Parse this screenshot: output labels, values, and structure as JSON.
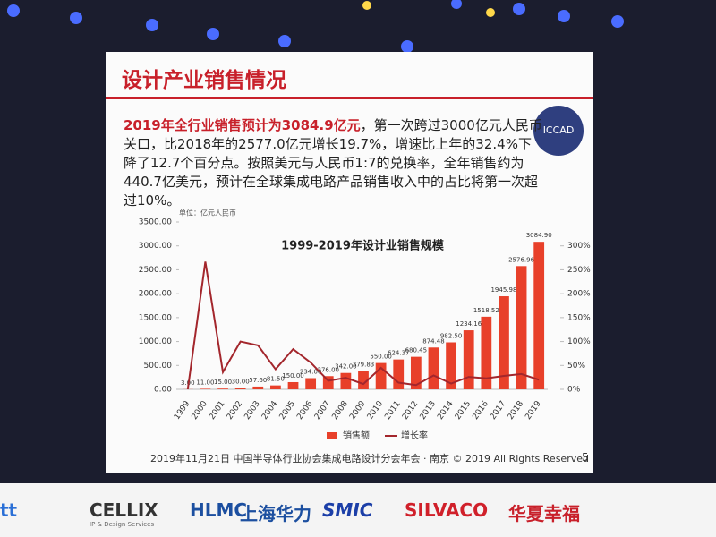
{
  "slide": {
    "title": "设计产业销售情况",
    "logo": "ICCAD",
    "highlight": "2019年全行业销售预计为3084.9亿元",
    "body": "，第一次跨过3000亿元人民币关口，比2018年的2577.0亿元增长19.7%，增速比上年的32.4%下降了12.7个百分点。按照美元与人民币1:7的兑换率，全年销售约为440.7亿美元，预计在全球集成电路产品销售收入中的占比将第一次超过10%。",
    "footer": "2019年11月21日  中国半导体行业协会集成电路设计分会年会 · 南京 © 2019 All Rights Reserved",
    "page": "5"
  },
  "sponsors": [
    "tt",
    "CELLIX",
    "IP & Design Services",
    "HLMC",
    "上海华力",
    "SMIC",
    "SILVACO",
    "华夏幸福"
  ],
  "chart_data": {
    "type": "bar-line",
    "title": "1999-2019年设计业销售规模",
    "unit": "单位：亿元人民币",
    "categories": [
      "1999",
      "2000",
      "2001",
      "2002",
      "2003",
      "2004",
      "2005",
      "2006",
      "2007",
      "2008",
      "2009",
      "2010",
      "2011",
      "2012",
      "2013",
      "2014",
      "2015",
      "2016",
      "2017",
      "2018",
      "2019"
    ],
    "series": [
      {
        "name": "销售额",
        "color": "#e8402a",
        "values": [
          3,
          11,
          15,
          30,
          57.6,
          81.5,
          150,
          234,
          276,
          342,
          379.83,
          550,
          624.37,
          680.45,
          874.48,
          982.5,
          1234.16,
          1518.52,
          1945.98,
          2576.96,
          3084.9
        ],
        "value_labels": [
          "3.00",
          "11.00",
          "15.00",
          "30.00",
          "57.60",
          "81.50",
          "150.00",
          "234.00",
          "276.00",
          "342.00",
          "379.83",
          "550.00",
          "624.37",
          "680.45",
          "874.48",
          "982.50",
          "1234.16",
          "1518.52",
          "1945.98",
          "2576.96",
          "3084.90"
        ]
      },
      {
        "name": "增长率",
        "color": "#a3262c",
        "axis": "y2",
        "values": [
          0,
          267,
          36,
          100,
          92,
          42,
          84,
          56,
          18,
          24,
          11,
          45,
          14,
          9,
          29,
          12,
          26,
          23,
          28,
          32,
          20
        ]
      }
    ],
    "ylim": [
      0,
      3500
    ],
    "yticks": [
      {
        "value": 0,
        "label": "0.00"
      },
      {
        "value": 500,
        "label": "500.00"
      },
      {
        "value": 1000,
        "label": "1000.00"
      },
      {
        "value": 1500,
        "label": "1500.00"
      },
      {
        "value": 2000,
        "label": "2000.00"
      },
      {
        "value": 2500,
        "label": "2500.00"
      },
      {
        "value": 3000,
        "label": "3000.00"
      },
      {
        "value": 3500,
        "label": "3500.00"
      }
    ],
    "y2lim": [
      0,
      350
    ],
    "y2ticks": [
      {
        "value": 0,
        "label": "0%"
      },
      {
        "value": 50,
        "label": "50%"
      },
      {
        "value": 100,
        "label": "100%"
      },
      {
        "value": 150,
        "label": "150%"
      },
      {
        "value": 200,
        "label": "200%"
      },
      {
        "value": 250,
        "label": "250%"
      },
      {
        "value": 300,
        "label": "300%"
      }
    ],
    "legend": "bottom"
  }
}
